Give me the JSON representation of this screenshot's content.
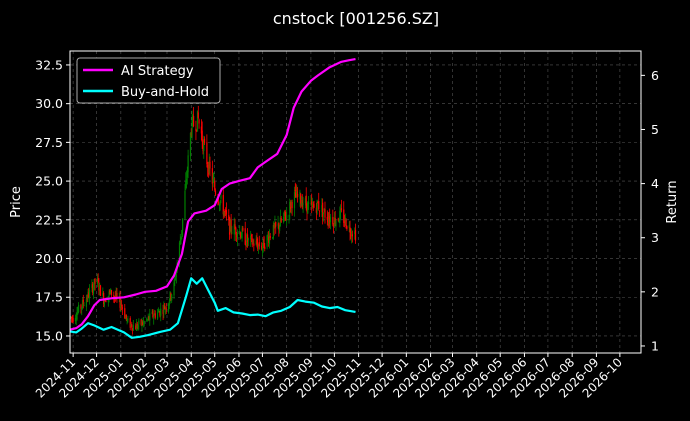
{
  "chart_data": {
    "type": "line",
    "title": "cnstock [001256.SZ]",
    "ylabel_left": "Price",
    "ylabel_right": "Return",
    "xlabel": "",
    "grid": true,
    "legend_position": "top-left",
    "x_range": [
      "2024-10-28",
      "2026-10-28"
    ],
    "ylim_left": [
      13.9,
      33.4
    ],
    "ylim_right": [
      0.87,
      6.45
    ],
    "left_ticks": [
      "15.0",
      "17.5",
      "20.0",
      "22.5",
      "25.0",
      "27.5",
      "30.0",
      "32.5"
    ],
    "right_ticks": [
      "1",
      "2",
      "3",
      "4",
      "5",
      "6"
    ],
    "x_ticks": [
      "2024-11",
      "2024-12",
      "2025-01",
      "2025-02",
      "2025-03",
      "2025-04",
      "2025-05",
      "2025-06",
      "2025-07",
      "2025-08",
      "2025-09",
      "2025-10",
      "2025-11",
      "2025-12",
      "2026-01",
      "2026-02",
      "2026-03",
      "2026-04",
      "2026-05",
      "2026-06",
      "2026-07",
      "2026-08",
      "2026-09",
      "2026-10"
    ],
    "candles_price_path": [
      [
        "2024-11-01",
        16.2
      ],
      [
        "2024-11-10",
        16.8
      ],
      [
        "2024-11-20",
        17.6
      ],
      [
        "2024-12-01",
        18.6
      ],
      [
        "2024-12-10",
        17.4
      ],
      [
        "2024-12-20",
        17.8
      ],
      [
        "2025-01-02",
        17.0
      ],
      [
        "2025-01-10",
        15.8
      ],
      [
        "2025-01-20",
        15.6
      ],
      [
        "2025-02-01",
        15.9
      ],
      [
        "2025-02-10",
        16.3
      ],
      [
        "2025-02-20",
        16.6
      ],
      [
        "2025-03-01",
        17.0
      ],
      [
        "2025-03-10",
        18.2
      ],
      [
        "2025-03-20",
        22.0
      ],
      [
        "2025-04-01",
        28.5
      ],
      [
        "2025-04-10",
        29.0
      ],
      [
        "2025-04-20",
        26.5
      ],
      [
        "2025-05-01",
        24.5
      ],
      [
        "2025-05-10",
        23.5
      ],
      [
        "2025-05-20",
        22.0
      ],
      [
        "2025-06-01",
        21.8
      ],
      [
        "2025-06-10",
        21.2
      ],
      [
        "2025-06-20",
        21.0
      ],
      [
        "2025-07-01",
        20.8
      ],
      [
        "2025-07-10",
        21.5
      ],
      [
        "2025-07-20",
        22.0
      ],
      [
        "2025-08-01",
        22.8
      ],
      [
        "2025-08-10",
        24.0
      ],
      [
        "2025-08-20",
        23.8
      ],
      [
        "2025-09-01",
        23.2
      ],
      [
        "2025-09-10",
        23.5
      ],
      [
        "2025-09-20",
        22.8
      ],
      [
        "2025-10-01",
        22.5
      ],
      [
        "2025-10-10",
        22.8
      ],
      [
        "2025-10-20",
        22.0
      ],
      [
        "2025-10-28",
        21.6
      ]
    ],
    "series": [
      {
        "name": "AI Strategy",
        "color": "#ff00ff",
        "axis": "right",
        "points": [
          [
            "2024-10-28",
            1.3
          ],
          [
            "2024-11-05",
            1.33
          ],
          [
            "2024-11-12",
            1.4
          ],
          [
            "2024-11-20",
            1.55
          ],
          [
            "2024-11-28",
            1.75
          ],
          [
            "2024-12-05",
            1.85
          ],
          [
            "2024-12-20",
            1.88
          ],
          [
            "2025-01-05",
            1.9
          ],
          [
            "2025-01-20",
            1.95
          ],
          [
            "2025-02-01",
            2.0
          ],
          [
            "2025-02-15",
            2.02
          ],
          [
            "2025-03-01",
            2.1
          ],
          [
            "2025-03-10",
            2.3
          ],
          [
            "2025-03-20",
            2.7
          ],
          [
            "2025-03-28",
            3.3
          ],
          [
            "2025-04-05",
            3.45
          ],
          [
            "2025-04-20",
            3.5
          ],
          [
            "2025-05-01",
            3.6
          ],
          [
            "2025-05-10",
            3.9
          ],
          [
            "2025-05-20",
            4.0
          ],
          [
            "2025-06-01",
            4.05
          ],
          [
            "2025-06-15",
            4.1
          ],
          [
            "2025-06-25",
            4.3
          ],
          [
            "2025-07-05",
            4.4
          ],
          [
            "2025-07-20",
            4.55
          ],
          [
            "2025-08-01",
            4.9
          ],
          [
            "2025-08-10",
            5.4
          ],
          [
            "2025-08-20",
            5.7
          ],
          [
            "2025-09-01",
            5.9
          ],
          [
            "2025-09-10",
            6.0
          ],
          [
            "2025-09-25",
            6.15
          ],
          [
            "2025-10-10",
            6.25
          ],
          [
            "2025-10-20",
            6.28
          ],
          [
            "2025-10-28",
            6.3
          ]
        ]
      },
      {
        "name": "Buy-and-Hold",
        "color": "#00ffff",
        "axis": "right",
        "points": [
          [
            "2024-10-28",
            1.27
          ],
          [
            "2024-11-05",
            1.25
          ],
          [
            "2024-11-12",
            1.32
          ],
          [
            "2024-11-20",
            1.42
          ],
          [
            "2024-11-28",
            1.38
          ],
          [
            "2024-12-10",
            1.3
          ],
          [
            "2024-12-20",
            1.35
          ],
          [
            "2025-01-05",
            1.25
          ],
          [
            "2025-01-15",
            1.15
          ],
          [
            "2025-01-25",
            1.17
          ],
          [
            "2025-02-05",
            1.2
          ],
          [
            "2025-02-20",
            1.26
          ],
          [
            "2025-03-05",
            1.3
          ],
          [
            "2025-03-15",
            1.42
          ],
          [
            "2025-03-25",
            1.9
          ],
          [
            "2025-04-01",
            2.25
          ],
          [
            "2025-04-08",
            2.15
          ],
          [
            "2025-04-15",
            2.25
          ],
          [
            "2025-04-22",
            2.05
          ],
          [
            "2025-05-01",
            1.8
          ],
          [
            "2025-05-05",
            1.65
          ],
          [
            "2025-05-15",
            1.7
          ],
          [
            "2025-05-25",
            1.62
          ],
          [
            "2025-06-05",
            1.6
          ],
          [
            "2025-06-15",
            1.57
          ],
          [
            "2025-06-25",
            1.58
          ],
          [
            "2025-07-05",
            1.55
          ],
          [
            "2025-07-15",
            1.62
          ],
          [
            "2025-07-25",
            1.65
          ],
          [
            "2025-08-05",
            1.72
          ],
          [
            "2025-08-15",
            1.85
          ],
          [
            "2025-08-25",
            1.82
          ],
          [
            "2025-09-05",
            1.8
          ],
          [
            "2025-09-15",
            1.73
          ],
          [
            "2025-09-25",
            1.7
          ],
          [
            "2025-10-05",
            1.72
          ],
          [
            "2025-10-15",
            1.66
          ],
          [
            "2025-10-28",
            1.63
          ]
        ]
      }
    ],
    "colors": {
      "up": "#008000",
      "down": "#ff0000",
      "grid": "#555555",
      "background": "#000000"
    }
  }
}
